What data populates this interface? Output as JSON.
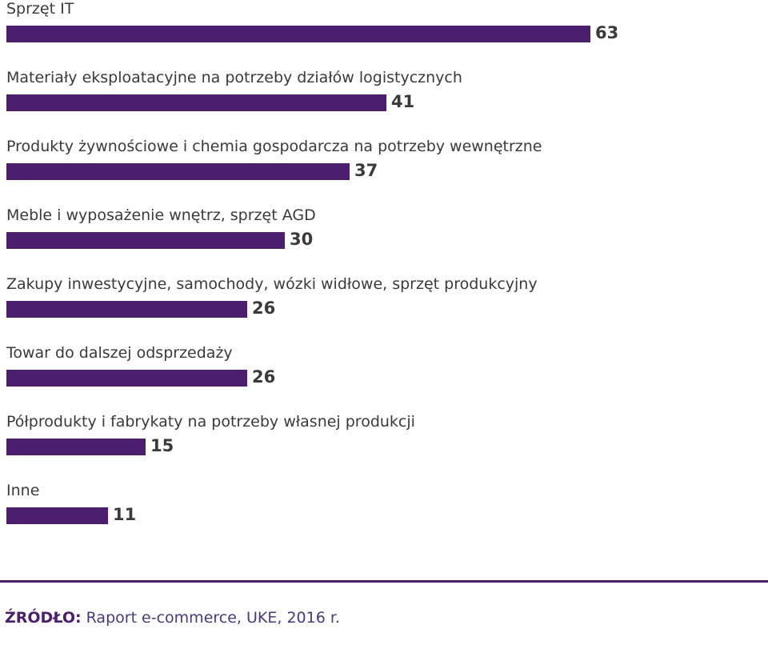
{
  "chart_data": {
    "type": "bar",
    "orientation": "horizontal",
    "title": "",
    "xlabel": "",
    "ylabel": "",
    "xlim": [
      0,
      63
    ],
    "grid": false,
    "bar_color": "#4b1e6e",
    "categories": [
      "Sprzęt IT",
      "Materiały eksploatacyjne na potrzeby działów logistycznych",
      "Produkty żywnościowe i chemia gospodarcza na potrzeby wewnętrzne",
      "Meble i wyposażenie wnętrz, sprzęt AGD",
      "Zakupy inwestycyjne, samochody, wózki widłowe, sprzęt produkcyjny",
      "Towar do dalszej odsprzedaży",
      "Półprodukty i fabrykaty na potrzeby własnej produkcji",
      "Inne"
    ],
    "values": [
      63,
      41,
      37,
      30,
      26,
      26,
      15,
      11
    ]
  },
  "source": {
    "label": "ŹRÓDŁO:",
    "text": " Raport e-commerce, UKE, 2016 r."
  },
  "colors": {
    "bar": "#4b1e6e",
    "divider": "#4b1e6e",
    "source_label": "#4b1e6e"
  }
}
